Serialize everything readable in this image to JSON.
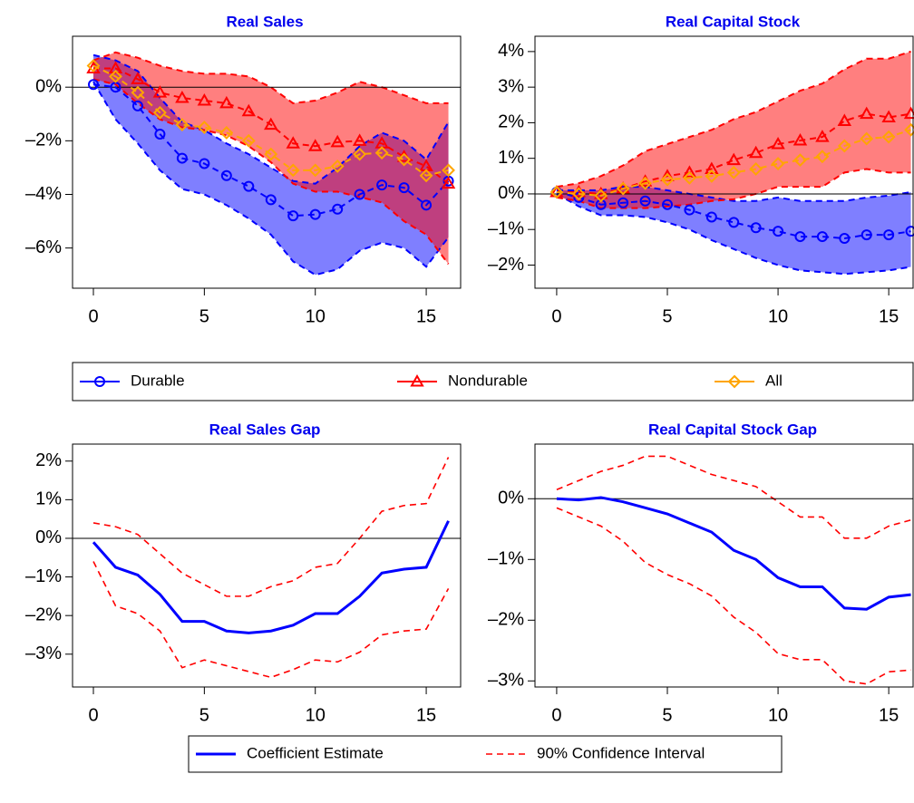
{
  "chart_data": [
    {
      "type": "line",
      "title": "Real Sales",
      "legend": "bottom",
      "x": [
        0,
        1,
        2,
        3,
        4,
        5,
        6,
        7,
        8,
        9,
        10,
        11,
        12,
        13,
        14,
        15,
        16
      ],
      "xlim": [
        -0.94,
        16.55
      ],
      "xticks": [
        0,
        5,
        10,
        15
      ],
      "ylim": [
        -7.5,
        1.9
      ],
      "yticks": [
        {
          "value": 0,
          "label": "0%"
        },
        {
          "value": -2,
          "label": "–2%"
        },
        {
          "value": -4,
          "label": "–4%"
        },
        {
          "value": -6,
          "label": "–6%"
        }
      ],
      "hline": 0,
      "series": [
        {
          "name": "Durable",
          "color": "#0000ff",
          "marker": "circle",
          "linestyle": "dashed",
          "values": [
            0.1,
            0.0,
            -0.7,
            -1.75,
            -2.65,
            -2.85,
            -3.3,
            -3.7,
            -4.2,
            -4.8,
            -4.75,
            -4.55,
            -4.0,
            -3.65,
            -3.75,
            -4.4,
            -3.5
          ],
          "lower": [
            0.2,
            -1.2,
            -2.1,
            -3.1,
            -3.8,
            -4.0,
            -4.4,
            -4.9,
            -5.5,
            -6.5,
            -7.0,
            -6.8,
            -6.1,
            -5.8,
            -6.0,
            -6.7,
            -5.6
          ],
          "upper": [
            1.2,
            1.0,
            0.6,
            -0.4,
            -1.3,
            -1.6,
            -2.1,
            -2.5,
            -3.0,
            -3.5,
            -3.6,
            -3.0,
            -2.2,
            -1.7,
            -2.0,
            -2.7,
            -1.3
          ]
        },
        {
          "name": "Nondurable",
          "color": "#ff0000",
          "marker": "triangle",
          "linestyle": "dashed",
          "values": [
            0.7,
            0.7,
            0.3,
            -0.2,
            -0.4,
            -0.5,
            -0.6,
            -0.9,
            -1.4,
            -2.1,
            -2.2,
            -2.05,
            -2.0,
            -2.1,
            -2.6,
            -2.95,
            -3.6
          ],
          "lower": [
            0.3,
            0.1,
            -0.6,
            -1.2,
            -1.5,
            -1.6,
            -1.8,
            -2.2,
            -2.8,
            -3.6,
            -3.9,
            -3.9,
            -4.1,
            -4.3,
            -5.0,
            -5.5,
            -6.6
          ],
          "upper": [
            1.0,
            1.3,
            1.1,
            0.8,
            0.6,
            0.5,
            0.5,
            0.4,
            0.0,
            -0.6,
            -0.5,
            -0.2,
            0.2,
            0.0,
            -0.3,
            -0.6,
            -0.6
          ]
        },
        {
          "name": "All",
          "color": "#ffa500",
          "marker": "diamond",
          "linestyle": "dashed",
          "values": [
            0.8,
            0.4,
            -0.2,
            -0.95,
            -1.4,
            -1.5,
            -1.7,
            -2.0,
            -2.5,
            -3.1,
            -3.1,
            -2.95,
            -2.5,
            -2.45,
            -2.7,
            -3.3,
            -3.1
          ]
        }
      ]
    },
    {
      "type": "line",
      "title": "Real Capital Stock",
      "x": [
        0,
        1,
        2,
        3,
        4,
        5,
        6,
        7,
        8,
        9,
        10,
        11,
        12,
        13,
        14,
        15,
        16
      ],
      "xlim": [
        -0.98,
        16.1
      ],
      "xticks": [
        0,
        5,
        10,
        15
      ],
      "ylim": [
        -2.65,
        4.43
      ],
      "yticks": [
        {
          "value": 4,
          "label": "4%"
        },
        {
          "value": 3,
          "label": "3%"
        },
        {
          "value": 2,
          "label": "2%"
        },
        {
          "value": 1,
          "label": "1%"
        },
        {
          "value": 0,
          "label": "0%"
        },
        {
          "value": -1,
          "label": "–1%"
        },
        {
          "value": -2,
          "label": "–2%"
        }
      ],
      "hline": 0,
      "series": [
        {
          "name": "Durable",
          "color": "#0000ff",
          "marker": "circle",
          "linestyle": "dashed",
          "values": [
            0.05,
            -0.1,
            -0.3,
            -0.25,
            -0.2,
            -0.3,
            -0.45,
            -0.65,
            -0.8,
            -0.95,
            -1.05,
            -1.2,
            -1.2,
            -1.25,
            -1.15,
            -1.15,
            -1.05
          ],
          "lower": [
            0.0,
            -0.35,
            -0.6,
            -0.6,
            -0.65,
            -0.8,
            -1.0,
            -1.3,
            -1.55,
            -1.8,
            -2.0,
            -2.15,
            -2.2,
            -2.25,
            -2.2,
            -2.15,
            -2.05
          ],
          "upper": [
            0.1,
            0.1,
            0.1,
            0.2,
            0.2,
            0.1,
            0.0,
            -0.1,
            -0.2,
            -0.2,
            -0.1,
            -0.2,
            -0.2,
            -0.2,
            -0.1,
            -0.05,
            0.05
          ]
        },
        {
          "name": "Nondurable",
          "color": "#ff0000",
          "marker": "triangle",
          "linestyle": "dashed",
          "values": [
            0.05,
            0.05,
            0.0,
            0.15,
            0.35,
            0.5,
            0.6,
            0.7,
            0.95,
            1.15,
            1.4,
            1.5,
            1.6,
            2.05,
            2.25,
            2.15,
            2.25
          ],
          "lower": [
            -0.1,
            -0.2,
            -0.4,
            -0.4,
            -0.4,
            -0.35,
            -0.3,
            -0.2,
            -0.15,
            0.0,
            0.2,
            0.2,
            0.2,
            0.6,
            0.7,
            0.6,
            0.6
          ],
          "upper": [
            0.2,
            0.3,
            0.5,
            0.8,
            1.2,
            1.4,
            1.6,
            1.8,
            2.1,
            2.3,
            2.6,
            2.9,
            3.1,
            3.5,
            3.8,
            3.8,
            4.0
          ]
        },
        {
          "name": "All",
          "color": "#ffa500",
          "marker": "diamond",
          "linestyle": "dashed",
          "values": [
            0.05,
            0.0,
            -0.05,
            0.15,
            0.3,
            0.4,
            0.45,
            0.5,
            0.6,
            0.7,
            0.85,
            0.95,
            1.05,
            1.35,
            1.55,
            1.6,
            1.8
          ]
        }
      ]
    },
    {
      "type": "line",
      "title": "Real Sales Gap",
      "legend": "bottom",
      "x": [
        0,
        1,
        2,
        3,
        4,
        5,
        6,
        7,
        8,
        9,
        10,
        11,
        12,
        13,
        14,
        15,
        16
      ],
      "xlim": [
        -0.94,
        16.55
      ],
      "xticks": [
        0,
        5,
        10,
        15
      ],
      "ylim": [
        -3.85,
        2.44
      ],
      "yticks": [
        {
          "value": 2,
          "label": "2%"
        },
        {
          "value": 1,
          "label": "1%"
        },
        {
          "value": 0,
          "label": "0%"
        },
        {
          "value": -1,
          "label": "–1%"
        },
        {
          "value": -2,
          "label": "–2%"
        },
        {
          "value": -3,
          "label": "–3%"
        }
      ],
      "hline": 0,
      "series": [
        {
          "name": "Coefficient Estimate",
          "color": "#0000ff",
          "linestyle": "solid",
          "values": [
            -0.1,
            -0.75,
            -0.95,
            -1.45,
            -2.15,
            -2.15,
            -2.4,
            -2.45,
            -2.4,
            -2.25,
            -1.95,
            -1.95,
            -1.5,
            -0.9,
            -0.8,
            -0.75,
            0.45
          ]
        },
        {
          "name": "90% Confidence Interval",
          "color": "#ff0000",
          "linestyle": "dashed",
          "lower": [
            -0.6,
            -1.75,
            -1.95,
            -2.4,
            -3.35,
            -3.15,
            -3.3,
            -3.45,
            -3.6,
            -3.4,
            -3.15,
            -3.2,
            -2.95,
            -2.5,
            -2.4,
            -2.35,
            -1.3
          ],
          "upper": [
            0.4,
            0.3,
            0.1,
            -0.4,
            -0.9,
            -1.2,
            -1.5,
            -1.5,
            -1.25,
            -1.1,
            -0.75,
            -0.65,
            0.0,
            0.7,
            0.85,
            0.9,
            2.1
          ]
        }
      ]
    },
    {
      "type": "line",
      "title": "Real Capital Stock Gap",
      "x": [
        0,
        1,
        2,
        3,
        4,
        5,
        6,
        7,
        8,
        9,
        10,
        11,
        12,
        13,
        14,
        15,
        16
      ],
      "xlim": [
        -0.98,
        16.1
      ],
      "xticks": [
        0,
        5,
        10,
        15
      ],
      "ylim": [
        -3.1,
        0.9
      ],
      "yticks": [
        {
          "value": 0,
          "label": "0%"
        },
        {
          "value": -1,
          "label": "–1%"
        },
        {
          "value": -2,
          "label": "–2%"
        },
        {
          "value": -3,
          "label": "–3%"
        }
      ],
      "hline": 0,
      "series": [
        {
          "name": "Coefficient Estimate",
          "color": "#0000ff",
          "linestyle": "solid",
          "values": [
            0.0,
            -0.02,
            0.02,
            -0.05,
            -0.15,
            -0.25,
            -0.4,
            -0.55,
            -0.85,
            -1.0,
            -1.3,
            -1.45,
            -1.45,
            -1.8,
            -1.82,
            -1.62,
            -1.58
          ]
        },
        {
          "name": "90% Confidence Interval",
          "color": "#ff0000",
          "linestyle": "dashed",
          "lower": [
            -0.15,
            -0.3,
            -0.45,
            -0.7,
            -1.05,
            -1.25,
            -1.4,
            -1.6,
            -1.95,
            -2.2,
            -2.55,
            -2.65,
            -2.65,
            -3.0,
            -3.05,
            -2.85,
            -2.82
          ],
          "upper": [
            0.15,
            0.3,
            0.45,
            0.55,
            0.7,
            0.7,
            0.55,
            0.4,
            0.3,
            0.2,
            -0.05,
            -0.3,
            -0.3,
            -0.65,
            -0.65,
            -0.45,
            -0.35
          ]
        }
      ]
    }
  ]
}
